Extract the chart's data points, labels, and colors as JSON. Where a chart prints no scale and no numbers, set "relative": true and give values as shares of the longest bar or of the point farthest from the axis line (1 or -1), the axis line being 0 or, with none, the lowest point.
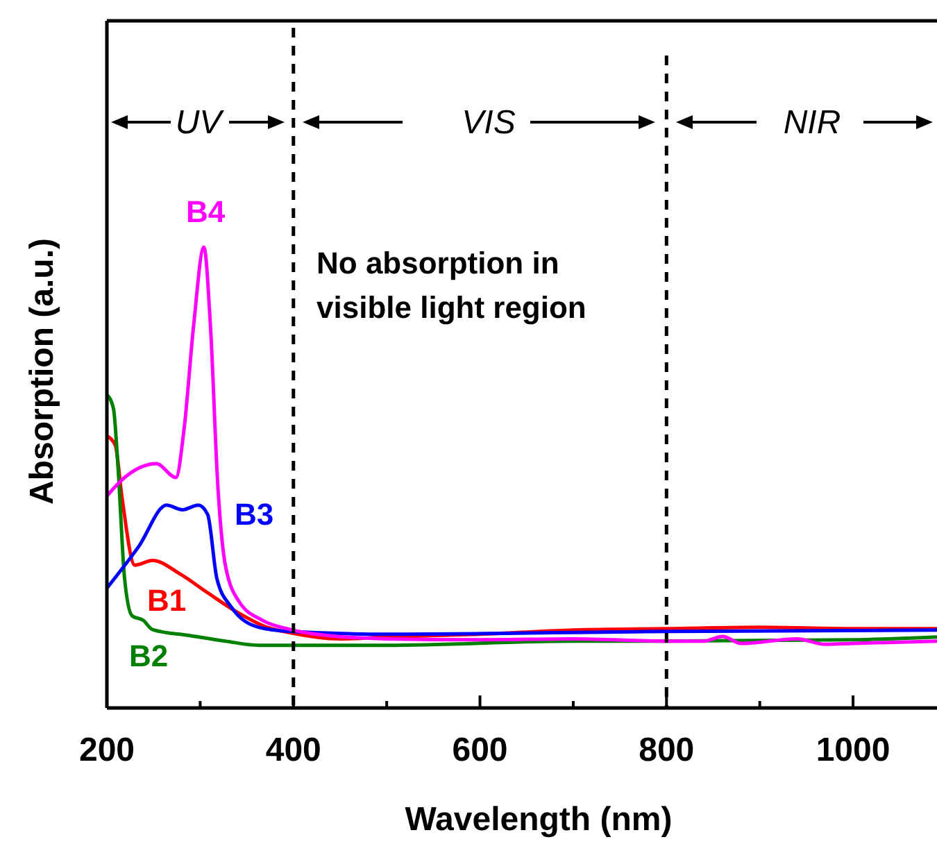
{
  "chart_data": {
    "type": "line",
    "xlabel": "Wavelength (nm)",
    "ylabel": "Absorption (a.u.)",
    "relative": true,
    "xlim": [
      200,
      1090
    ],
    "xticks": [
      200,
      {
        "value": 300,
        "label": null
      },
      400,
      {
        "value": 500,
        "label": null
      },
      600,
      {
        "value": 700,
        "label": null
      },
      800,
      {
        "value": 900,
        "label": null
      },
      1000
    ],
    "grid": false,
    "line_style": "solid",
    "ref_lines": [
      {
        "axis": "x",
        "value": 400,
        "line_style": "dashed",
        "color": "#000000"
      },
      {
        "axis": "x",
        "value": 800,
        "line_style": "dashed",
        "color": "#000000"
      }
    ],
    "annotations": [
      "UV",
      "VIS",
      "NIR",
      "No absorption in visible light region"
    ],
    "series": [
      {
        "name": "B1",
        "color": "#ff0000",
        "x": [
          200,
          209,
          216,
          230,
          249,
          279,
          308,
          338,
          372,
          397,
          450,
          500,
          600,
          700,
          800,
          900,
          1000,
          1090
        ],
        "values": [
          0.59,
          0.57,
          0.46,
          0.31,
          0.32,
          0.29,
          0.25,
          0.21,
          0.175,
          0.163,
          0.15,
          0.154,
          0.16,
          0.169,
          0.172,
          0.175,
          0.172,
          0.172
        ]
      },
      {
        "name": "B2",
        "color": "#008000",
        "x": [
          200,
          207,
          212,
          219,
          227,
          239,
          249,
          289,
          327,
          363,
          397,
          500,
          700,
          800,
          1000,
          1090
        ],
        "values": [
          0.68,
          0.65,
          0.52,
          0.28,
          0.2,
          0.19,
          0.17,
          0.157,
          0.145,
          0.136,
          0.136,
          0.136,
          0.145,
          0.145,
          0.148,
          0.154
        ]
      },
      {
        "name": "B3",
        "color": "#0000ff",
        "x": [
          200,
          234,
          264,
          281,
          298,
          308,
          318,
          333,
          363,
          397,
          500,
          800,
          1090
        ],
        "values": [
          0.26,
          0.35,
          0.44,
          0.43,
          0.44,
          0.42,
          0.28,
          0.22,
          0.175,
          0.166,
          0.16,
          0.166,
          0.169
        ]
      },
      {
        "name": "B4",
        "color": "#ff00ff",
        "x": [
          200,
          219,
          253,
          274,
          283,
          293,
          304,
          311,
          319,
          327,
          342,
          367,
          397,
          437,
          500,
          600,
          700,
          800,
          840,
          860,
          880,
          940,
          970,
          1000,
          1090
        ],
        "values": [
          0.46,
          0.5,
          0.53,
          0.5,
          0.61,
          0.83,
          1.0,
          0.83,
          0.48,
          0.31,
          0.23,
          0.19,
          0.17,
          0.157,
          0.15,
          0.148,
          0.15,
          0.145,
          0.145,
          0.155,
          0.14,
          0.15,
          0.138,
          0.14,
          0.145
        ]
      }
    ]
  }
}
